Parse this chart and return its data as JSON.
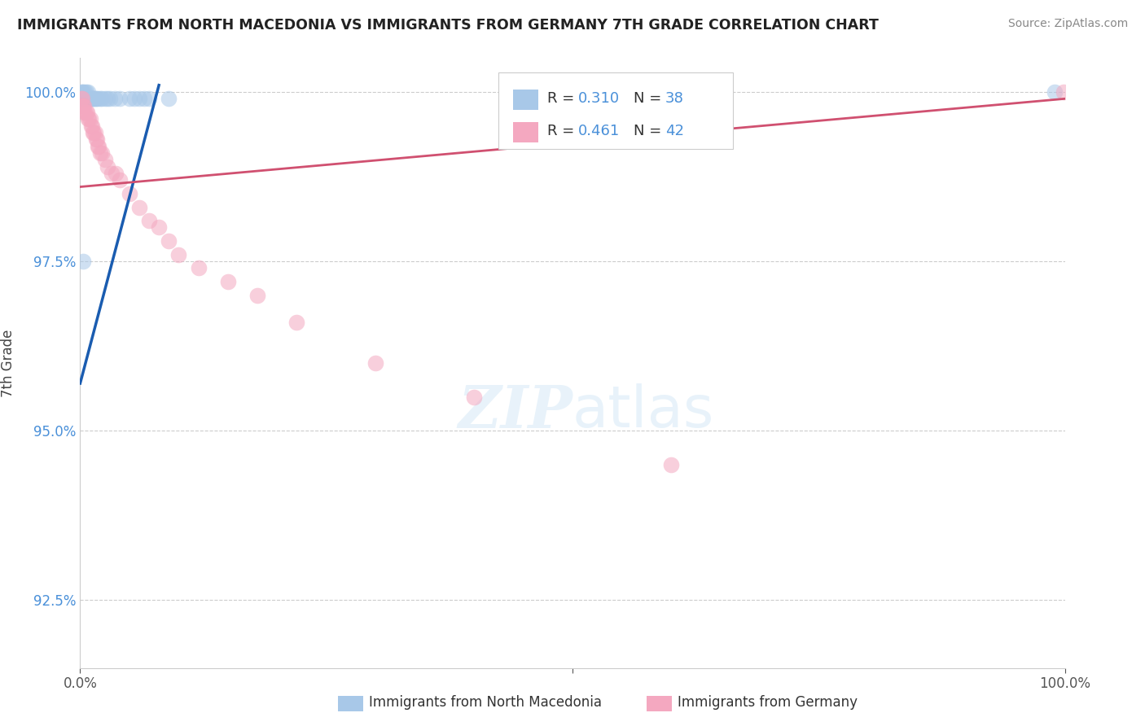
{
  "title": "IMMIGRANTS FROM NORTH MACEDONIA VS IMMIGRANTS FROM GERMANY 7TH GRADE CORRELATION CHART",
  "source": "Source: ZipAtlas.com",
  "ylabel": "7th Grade",
  "xlim": [
    0.0,
    1.0
  ],
  "ylim": [
    0.915,
    1.005
  ],
  "yticks": [
    0.925,
    0.95,
    0.975,
    1.0
  ],
  "ytick_labels": [
    "92.5%",
    "95.0%",
    "97.5%",
    "100.0%"
  ],
  "xtick_labels_left": "0.0%",
  "xtick_labels_right": "100.0%",
  "blue_color": "#a8c8e8",
  "pink_color": "#f4a8c0",
  "blue_line_color": "#1a5cb0",
  "pink_line_color": "#d05070",
  "label1": "Immigrants from North Macedonia",
  "label2": "Immigrants from Germany",
  "blue_R": "0.310",
  "blue_N": "38",
  "pink_R": "0.461",
  "pink_N": "42",
  "text_color_RN": "#4a90d9",
  "blue_x": [
    0.001,
    0.001,
    0.002,
    0.002,
    0.003,
    0.003,
    0.004,
    0.005,
    0.005,
    0.006,
    0.006,
    0.007,
    0.008,
    0.008,
    0.009,
    0.01,
    0.011,
    0.012,
    0.013,
    0.014,
    0.015,
    0.016,
    0.018,
    0.02,
    0.022,
    0.025,
    0.028,
    0.03,
    0.035,
    0.04,
    0.05,
    0.055,
    0.06,
    0.065,
    0.07,
    0.09,
    0.99,
    0.003
  ],
  "blue_y": [
    0.999,
    1.0,
    0.999,
    1.0,
    0.999,
    1.0,
    0.999,
    0.999,
    1.0,
    0.999,
    1.0,
    0.999,
    0.999,
    1.0,
    0.999,
    0.999,
    0.999,
    0.999,
    0.999,
    0.999,
    0.999,
    0.999,
    0.999,
    0.999,
    0.999,
    0.999,
    0.999,
    0.999,
    0.999,
    0.999,
    0.999,
    0.999,
    0.999,
    0.999,
    0.999,
    0.999,
    1.0,
    0.975
  ],
  "pink_x": [
    0.001,
    0.002,
    0.002,
    0.003,
    0.004,
    0.004,
    0.005,
    0.006,
    0.007,
    0.008,
    0.009,
    0.01,
    0.011,
    0.012,
    0.013,
    0.014,
    0.015,
    0.016,
    0.017,
    0.018,
    0.019,
    0.02,
    0.022,
    0.025,
    0.028,
    0.032,
    0.036,
    0.04,
    0.05,
    0.06,
    0.07,
    0.08,
    0.09,
    0.1,
    0.12,
    0.15,
    0.18,
    0.22,
    0.3,
    0.4,
    0.6,
    0.999
  ],
  "pink_y": [
    0.999,
    0.998,
    0.999,
    0.998,
    0.997,
    0.998,
    0.997,
    0.997,
    0.997,
    0.996,
    0.996,
    0.996,
    0.995,
    0.995,
    0.994,
    0.994,
    0.994,
    0.993,
    0.993,
    0.992,
    0.992,
    0.991,
    0.991,
    0.99,
    0.989,
    0.988,
    0.988,
    0.987,
    0.985,
    0.983,
    0.981,
    0.98,
    0.978,
    0.976,
    0.974,
    0.972,
    0.97,
    0.966,
    0.96,
    0.955,
    0.945,
    1.0
  ]
}
